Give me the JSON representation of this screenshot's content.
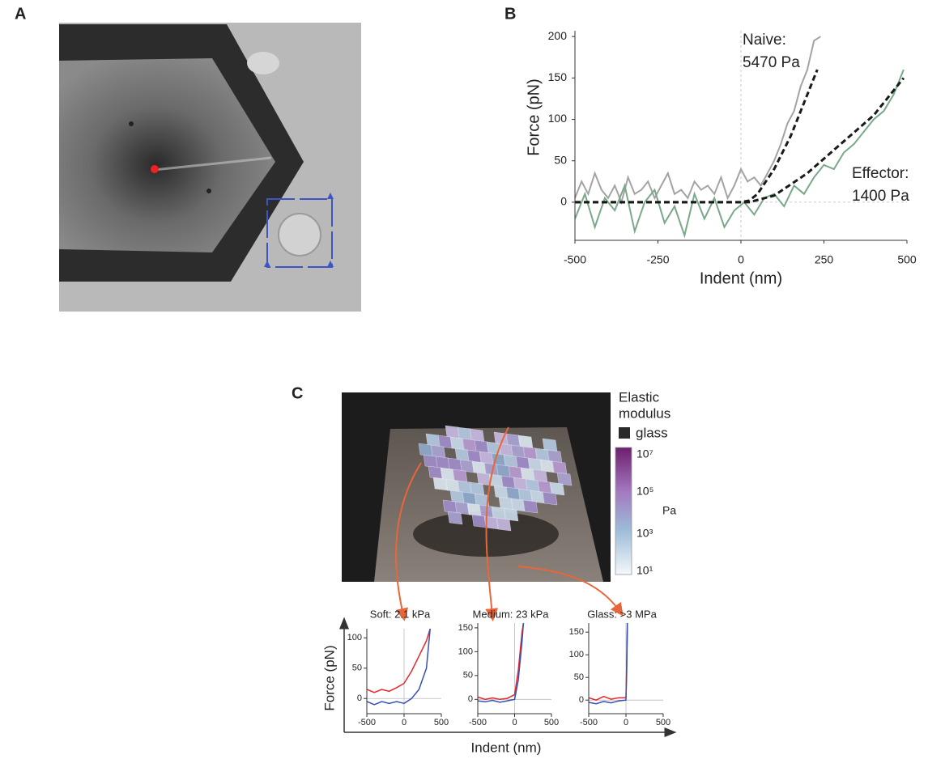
{
  "panel_labels": [
    "A",
    "B",
    "C"
  ],
  "colorbar": {
    "title_lines": [
      "Elastic",
      "modulus"
    ],
    "glass_label": "glass",
    "ticks": [
      "10⁷",
      "10⁵",
      "10³",
      "10¹"
    ],
    "unit": "Pa"
  },
  "figure_c": {
    "y_label": "Force (pN)",
    "x_label": "Indent (nm)"
  },
  "chart_data": [
    {
      "type": "line",
      "x_label": "Indent (nm)",
      "y_label": "Force (pN)",
      "annotations": [
        "Naive:",
        "5470 Pa",
        "Effector:",
        "1400 Pa"
      ],
      "xlim": [
        -500,
        500
      ],
      "ylim": [
        -46,
        207
      ],
      "xticks": [
        -500,
        -250,
        0,
        250,
        500
      ],
      "yticks": [
        0,
        50,
        100,
        150,
        200
      ],
      "zero_lines": true,
      "series": [
        {
          "color": "#a3a3a3",
          "style": "solid",
          "x": [
            -500,
            -480,
            -460,
            -440,
            -420,
            -400,
            -380,
            -360,
            -340,
            -320,
            -300,
            -280,
            -260,
            -240,
            -220,
            -200,
            -180,
            -160,
            -140,
            -120,
            -100,
            -80,
            -60,
            -40,
            -20,
            0,
            20,
            40,
            60,
            80,
            100,
            120,
            140,
            160,
            180,
            200,
            220,
            240
          ],
          "values": [
            5,
            25,
            10,
            35,
            15,
            5,
            20,
            0,
            30,
            10,
            15,
            25,
            5,
            20,
            35,
            10,
            15,
            5,
            25,
            15,
            20,
            10,
            30,
            5,
            20,
            40,
            25,
            30,
            20,
            35,
            50,
            70,
            95,
            110,
            140,
            160,
            195,
            200
          ]
        },
        {
          "color": "#7aa889",
          "style": "solid",
          "x": [
            -500,
            -470,
            -440,
            -410,
            -380,
            -350,
            -320,
            -290,
            -260,
            -230,
            -200,
            -170,
            -140,
            -110,
            -80,
            -50,
            -20,
            10,
            40,
            70,
            100,
            130,
            160,
            190,
            220,
            250,
            280,
            310,
            340,
            370,
            400,
            430,
            460,
            490
          ],
          "values": [
            -20,
            10,
            -30,
            5,
            -10,
            20,
            -35,
            0,
            15,
            -25,
            -5,
            -40,
            10,
            -20,
            5,
            -30,
            -10,
            0,
            -15,
            5,
            10,
            -5,
            20,
            10,
            30,
            45,
            40,
            60,
            70,
            85,
            100,
            110,
            130,
            160
          ]
        },
        {
          "color": "#1a1a1a",
          "style": "dashed",
          "x": [
            -500,
            -250,
            0,
            25,
            50,
            100,
            150,
            200,
            230
          ],
          "values": [
            0,
            0,
            0,
            2,
            10,
            40,
            80,
            130,
            160
          ]
        },
        {
          "color": "#1a1a1a",
          "style": "dashed",
          "x": [
            -500,
            -250,
            0,
            25,
            100,
            200,
            300,
            400,
            490
          ],
          "values": [
            0,
            0,
            0,
            0,
            8,
            35,
            70,
            105,
            150
          ]
        }
      ]
    },
    {
      "type": "line",
      "title": "Soft: 2.1 kPa",
      "xlim": [
        -500,
        500
      ],
      "ylim": [
        -25,
        115
      ],
      "xticks": [
        -500,
        0,
        500
      ],
      "yticks": [
        0,
        50,
        100
      ],
      "zero_lines": true,
      "series": [
        {
          "color": "#e8262b",
          "style": "solid",
          "x": [
            -500,
            -400,
            -300,
            -200,
            -100,
            0,
            100,
            200,
            300,
            350
          ],
          "values": [
            15,
            10,
            15,
            12,
            18,
            25,
            45,
            70,
            95,
            115
          ]
        },
        {
          "color": "#3a4fb5",
          "style": "solid",
          "x": [
            -500,
            -400,
            -300,
            -200,
            -100,
            0,
            100,
            200,
            300,
            350
          ],
          "values": [
            -5,
            -10,
            -5,
            -8,
            -5,
            -8,
            0,
            15,
            50,
            115
          ]
        }
      ]
    },
    {
      "type": "line",
      "title": "Medium: 23 kPa",
      "xlim": [
        -500,
        500
      ],
      "ylim": [
        -30,
        160
      ],
      "xticks": [
        -500,
        0,
        500
      ],
      "yticks": [
        0,
        50,
        100,
        150
      ],
      "zero_lines": true,
      "series": [
        {
          "color": "#e8262b",
          "style": "solid",
          "x": [
            -500,
            -400,
            -300,
            -200,
            -100,
            0,
            50,
            100,
            120
          ],
          "values": [
            5,
            0,
            3,
            0,
            2,
            10,
            60,
            140,
            160
          ]
        },
        {
          "color": "#3a4fb5",
          "style": "solid",
          "x": [
            -500,
            -400,
            -300,
            -200,
            -100,
            0,
            50,
            100,
            120
          ],
          "values": [
            -3,
            -5,
            -2,
            -6,
            -3,
            0,
            40,
            120,
            160
          ]
        }
      ]
    },
    {
      "type": "line",
      "title": "Glass: >3 MPa",
      "xlim": [
        -500,
        500
      ],
      "ylim": [
        -30,
        170
      ],
      "xticks": [
        -500,
        0,
        500
      ],
      "yticks": [
        0,
        50,
        100,
        150
      ],
      "zero_lines": true,
      "series": [
        {
          "color": "#e8262b",
          "style": "solid",
          "x": [
            -500,
            -400,
            -300,
            -200,
            -100,
            0,
            10,
            20
          ],
          "values": [
            5,
            0,
            8,
            2,
            5,
            5,
            80,
            170
          ]
        },
        {
          "color": "#3a4fb5",
          "style": "solid",
          "x": [
            -500,
            -400,
            -300,
            -200,
            -100,
            0,
            10,
            20
          ],
          "values": [
            -5,
            -8,
            -3,
            -6,
            -2,
            0,
            60,
            170
          ]
        }
      ]
    }
  ]
}
